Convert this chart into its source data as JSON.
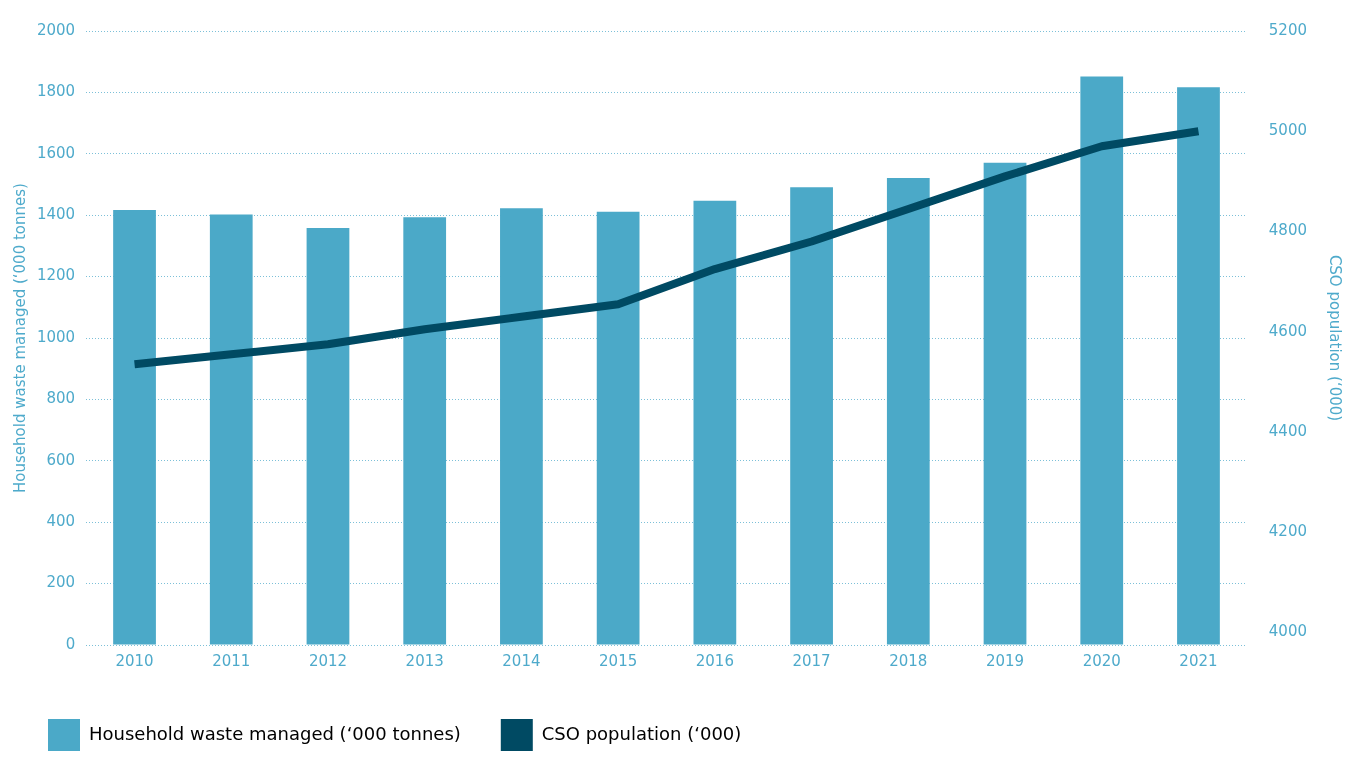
{
  "chart_data": {
    "type": "bar",
    "categories": [
      "2010",
      "2011",
      "2012",
      "2013",
      "2014",
      "2015",
      "2016",
      "2017",
      "2018",
      "2019",
      "2020",
      "2021"
    ],
    "series": [
      {
        "name": "Household waste managed (‘000 tonnes)",
        "color": "#4ba9c8",
        "values": [
          1417,
          1402,
          1358,
          1393,
          1423,
          1411,
          1447,
          1491,
          1521,
          1571,
          1852,
          1817
        ]
      },
      {
        "name": "CSO population (‘000)",
        "type": "line",
        "axis": "y2",
        "color": "#004a63",
        "values": [
          4535,
          4555,
          4575,
          4605,
          4630,
          4655,
          4725,
          4780,
          4845,
          4910,
          4970,
          5000
        ]
      }
    ],
    "ylabel": "Household waste managed (‘000 tonnes)",
    "y2label": "CSO population (‘000)",
    "ylim": [
      0,
      2000
    ],
    "yticks": [
      0,
      200,
      400,
      600,
      800,
      1000,
      1200,
      1400,
      1600,
      1800,
      2000
    ],
    "y2lim": [
      3975,
      5200
    ],
    "y2ticks": [
      4000,
      4200,
      4400,
      4600,
      4800,
      5000,
      5200
    ],
    "grid": "y",
    "legend": "bottom",
    "marker": "none",
    "line_style": "solid"
  }
}
